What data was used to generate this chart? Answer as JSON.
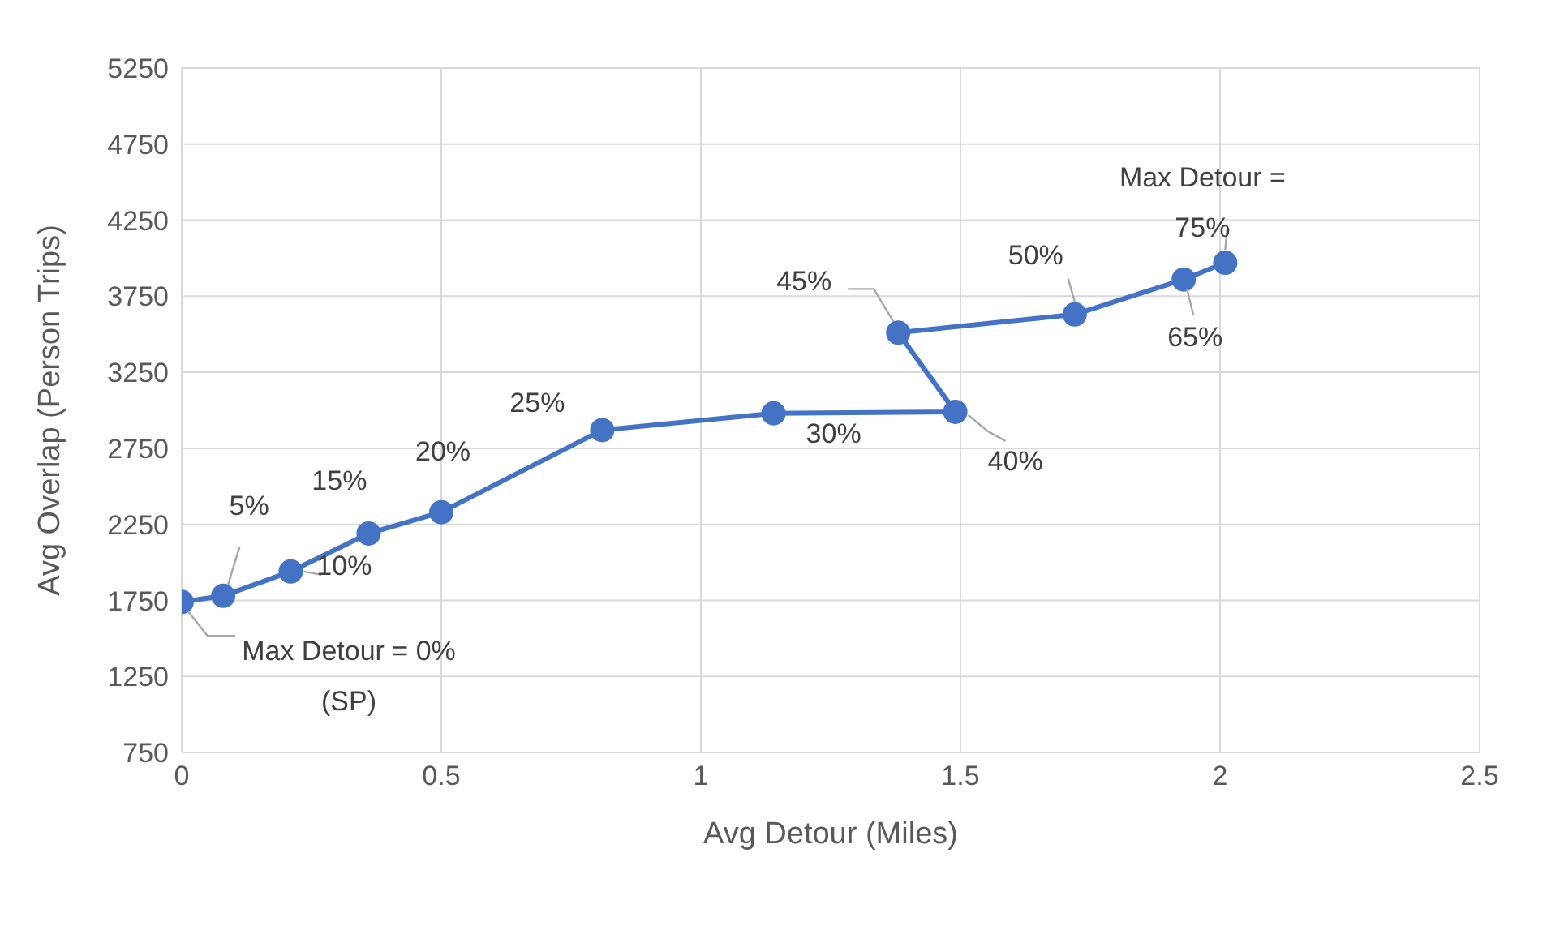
{
  "chart_data": {
    "type": "line",
    "xlabel": "Avg Detour (Miles)",
    "ylabel": "Avg Overlap (Person Trips)",
    "x": [
      0,
      0.08,
      0.21,
      0.36,
      0.5,
      0.81,
      1.14,
      1.49,
      1.38,
      1.72,
      1.93,
      2.01
    ],
    "series": [
      {
        "color": "#4472c4",
        "values": [
          1740,
          1780,
          1940,
          2190,
          2330,
          2870,
          2980,
          2990,
          3510,
          3630,
          3860,
          3970
        ]
      }
    ],
    "xlim": [
      0,
      2.5
    ],
    "xticks": [
      0,
      0.5,
      1,
      1.5,
      2,
      2.5
    ],
    "ylim": [
      750,
      5250
    ],
    "yticks": [
      750,
      1250,
      1750,
      2250,
      2750,
      3250,
      3750,
      4250,
      4750,
      5250
    ],
    "grid": true,
    "marker": "circle",
    "line_style": "solid",
    "annotations": [
      {
        "text": "Max Detour = 0% (SP)",
        "x": 0,
        "y": 1740
      },
      {
        "text": "5%",
        "x": 0.08,
        "y": 1780
      },
      {
        "text": "10%",
        "x": 0.21,
        "y": 1940
      },
      {
        "text": "15%",
        "x": 0.36,
        "y": 2190
      },
      {
        "text": "20%",
        "x": 0.5,
        "y": 2330
      },
      {
        "text": "25%",
        "x": 0.81,
        "y": 2870
      },
      {
        "text": "30%",
        "x": 1.14,
        "y": 2980
      },
      {
        "text": "40%",
        "x": 1.49,
        "y": 2990
      },
      {
        "text": "45%",
        "x": 1.38,
        "y": 3510
      },
      {
        "text": "50%",
        "x": 1.72,
        "y": 3630
      },
      {
        "text": "65%",
        "x": 1.93,
        "y": 3860
      },
      {
        "text": "Max Detour = 75%",
        "x": 2.01,
        "y": 3970
      }
    ]
  }
}
